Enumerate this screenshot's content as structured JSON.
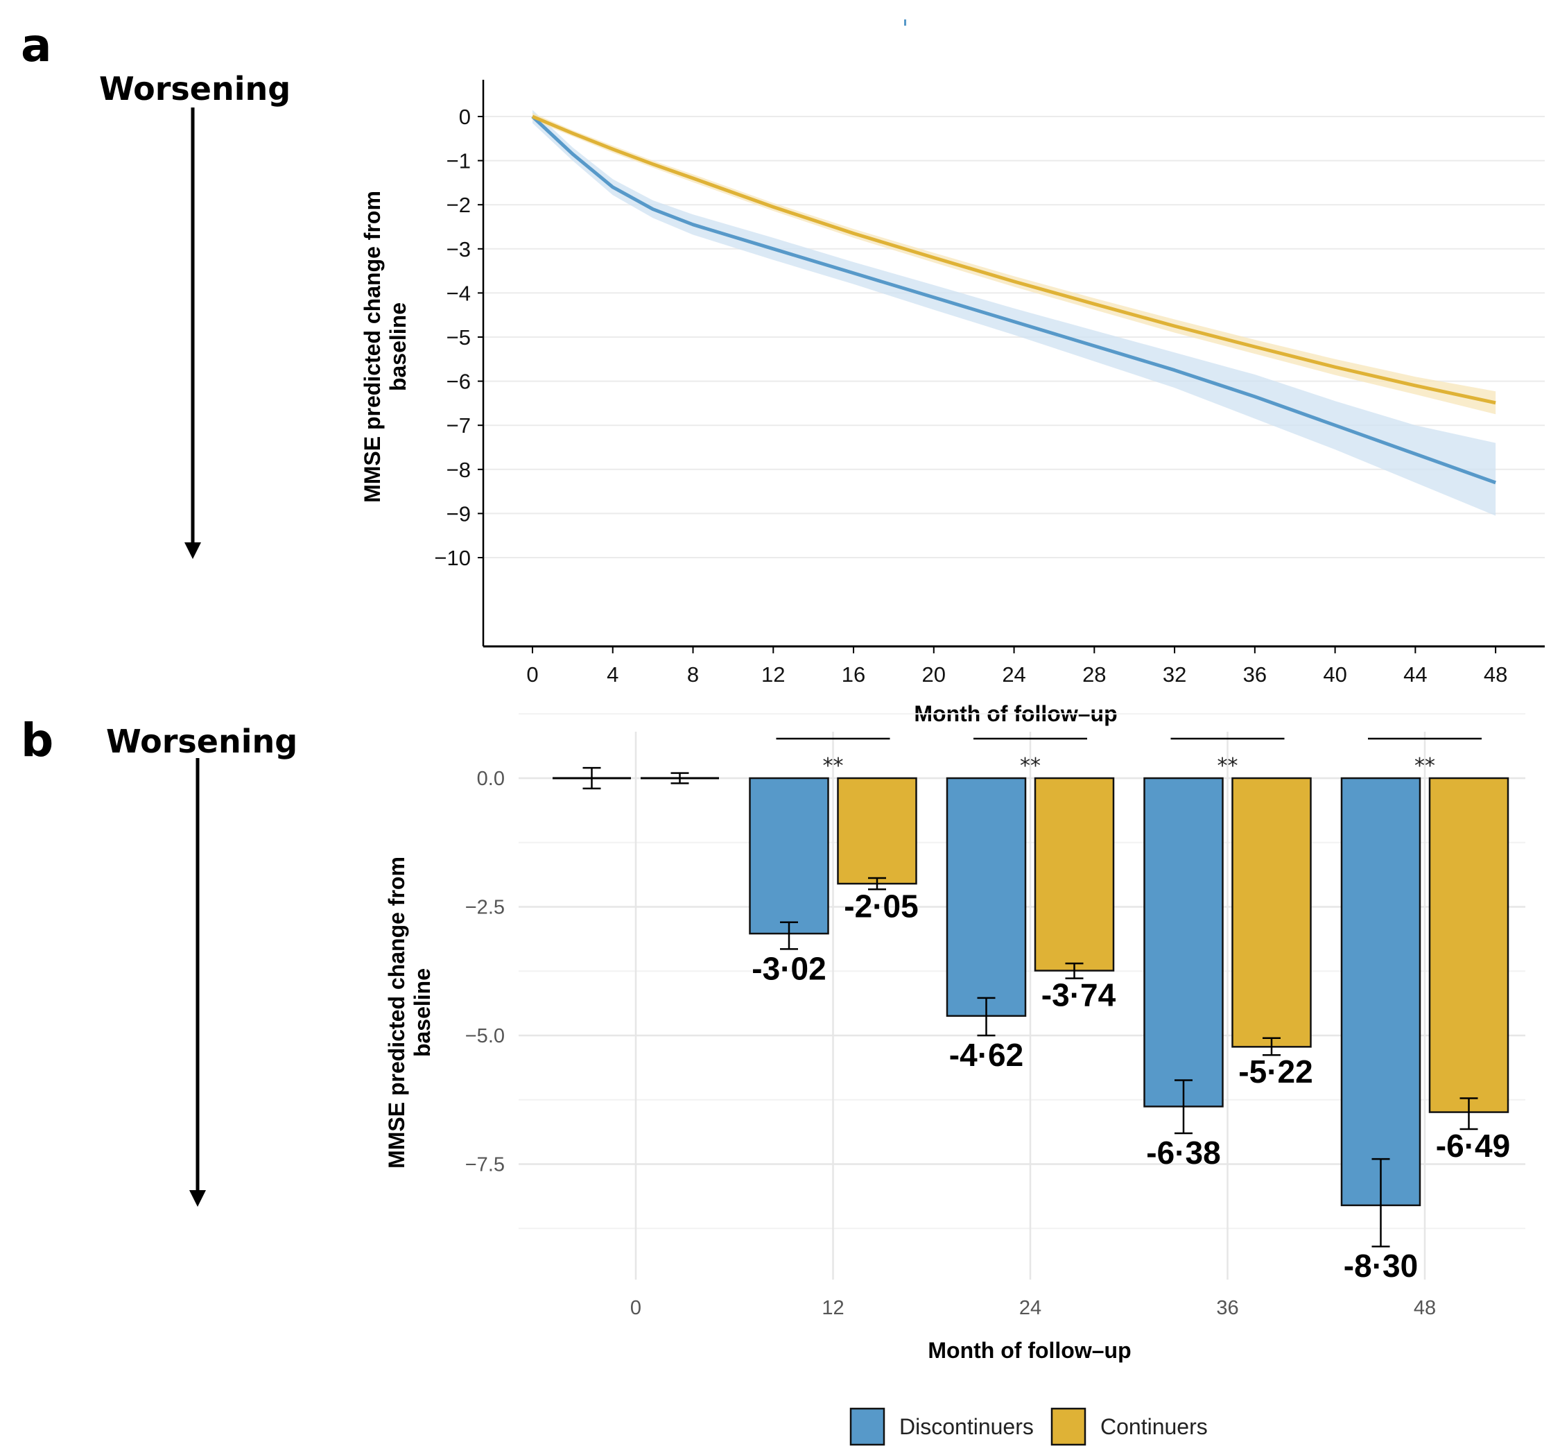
{
  "figure": {
    "panel_a_label": "a",
    "panel_b_label": "b",
    "worsening_label": "Worsening",
    "colors": {
      "discontinuers": "#5799c9",
      "continuers": "#dfb236",
      "discontinuers_band": "#cfe2f1",
      "continuers_band": "#f7e6b9"
    }
  },
  "chart_data": [
    {
      "type": "line",
      "panel": "a",
      "title": "",
      "xlabel": "Month of follow–up",
      "ylabel": "MMSE predicted change from baseline",
      "xlim": [
        -2,
        50
      ],
      "ylim": [
        -10.5,
        0.7
      ],
      "xticks": [
        0,
        4,
        8,
        12,
        16,
        20,
        24,
        28,
        32,
        36,
        40,
        44,
        48
      ],
      "yticks": [
        0,
        -1,
        -2,
        -3,
        -4,
        -5,
        -6,
        -7,
        -8,
        -9,
        -10
      ],
      "ytick_labels": [
        "0",
        "−1",
        "−2",
        "−3",
        "−4",
        "−5",
        "−6",
        "−7",
        "−8",
        "−9",
        "−10"
      ],
      "grid": "horizontal",
      "x": [
        0,
        2,
        4,
        6,
        8,
        12,
        16,
        20,
        24,
        28,
        32,
        36,
        40,
        44,
        48
      ],
      "series": [
        {
          "name": "Discontinuers",
          "values": [
            0,
            -0.85,
            -1.6,
            -2.1,
            -2.45,
            -3.0,
            -3.55,
            -4.1,
            -4.65,
            -5.2,
            -5.75,
            -6.35,
            -7.0,
            -7.65,
            -8.3
          ],
          "lower": [
            -0.15,
            -1.0,
            -1.78,
            -2.3,
            -2.68,
            -3.25,
            -3.8,
            -4.38,
            -4.95,
            -5.55,
            -6.15,
            -6.85,
            -7.55,
            -8.3,
            -9.05
          ],
          "upper": [
            0.15,
            -0.7,
            -1.42,
            -1.9,
            -2.22,
            -2.75,
            -3.3,
            -3.82,
            -4.35,
            -4.85,
            -5.35,
            -5.85,
            -6.45,
            -7.0,
            -7.4
          ]
        },
        {
          "name": "Continuers",
          "values": [
            0,
            -0.38,
            -0.74,
            -1.08,
            -1.4,
            -2.05,
            -2.65,
            -3.2,
            -3.74,
            -4.25,
            -4.75,
            -5.22,
            -5.68,
            -6.1,
            -6.49
          ],
          "lower": [
            -0.08,
            -0.45,
            -0.82,
            -1.16,
            -1.49,
            -2.14,
            -2.75,
            -3.31,
            -3.86,
            -4.38,
            -4.9,
            -5.38,
            -5.86,
            -6.3,
            -6.75
          ],
          "upper": [
            0.08,
            -0.31,
            -0.66,
            -1.0,
            -1.31,
            -1.96,
            -2.55,
            -3.09,
            -3.62,
            -4.12,
            -4.6,
            -5.06,
            -5.5,
            -5.9,
            -6.23
          ]
        }
      ]
    },
    {
      "type": "bar",
      "panel": "b",
      "title": "",
      "xlabel": "Month of follow–up",
      "ylabel": "MMSE predicted change from baseline",
      "categories": [
        "0",
        "12",
        "24",
        "36",
        "48"
      ],
      "ylim": [
        -9.8,
        0.7
      ],
      "yticks": [
        0.0,
        -2.5,
        -5.0,
        -7.5
      ],
      "ytick_labels": [
        "0.0",
        "−2.5",
        "−5.0",
        "−7.5"
      ],
      "grid": "both",
      "legend_position": "bottom",
      "series": [
        {
          "name": "Discontinuers",
          "values": [
            0,
            -3.02,
            -4.62,
            -6.38,
            -8.3
          ],
          "err_low": [
            -0.2,
            -3.32,
            -5.0,
            -6.9,
            -9.1
          ],
          "err_high": [
            0.2,
            -2.8,
            -4.27,
            -5.87,
            -7.4
          ],
          "labels": [
            "",
            "-3·02",
            "-4·62",
            "-6·38",
            "-8·30"
          ]
        },
        {
          "name": "Continuers",
          "values": [
            0,
            -2.05,
            -3.74,
            -5.22,
            -6.49
          ],
          "err_low": [
            -0.1,
            -2.16,
            -3.89,
            -5.38,
            -6.82
          ],
          "err_high": [
            0.1,
            -1.94,
            -3.6,
            -5.05,
            -6.22
          ],
          "labels": [
            "",
            "-2·05",
            "-3·74",
            "-5·22",
            "-6·49"
          ]
        }
      ],
      "significance": [
        "",
        "**",
        "**",
        "**",
        "**"
      ],
      "legend": [
        "Discontinuers",
        "Continuers"
      ]
    }
  ]
}
